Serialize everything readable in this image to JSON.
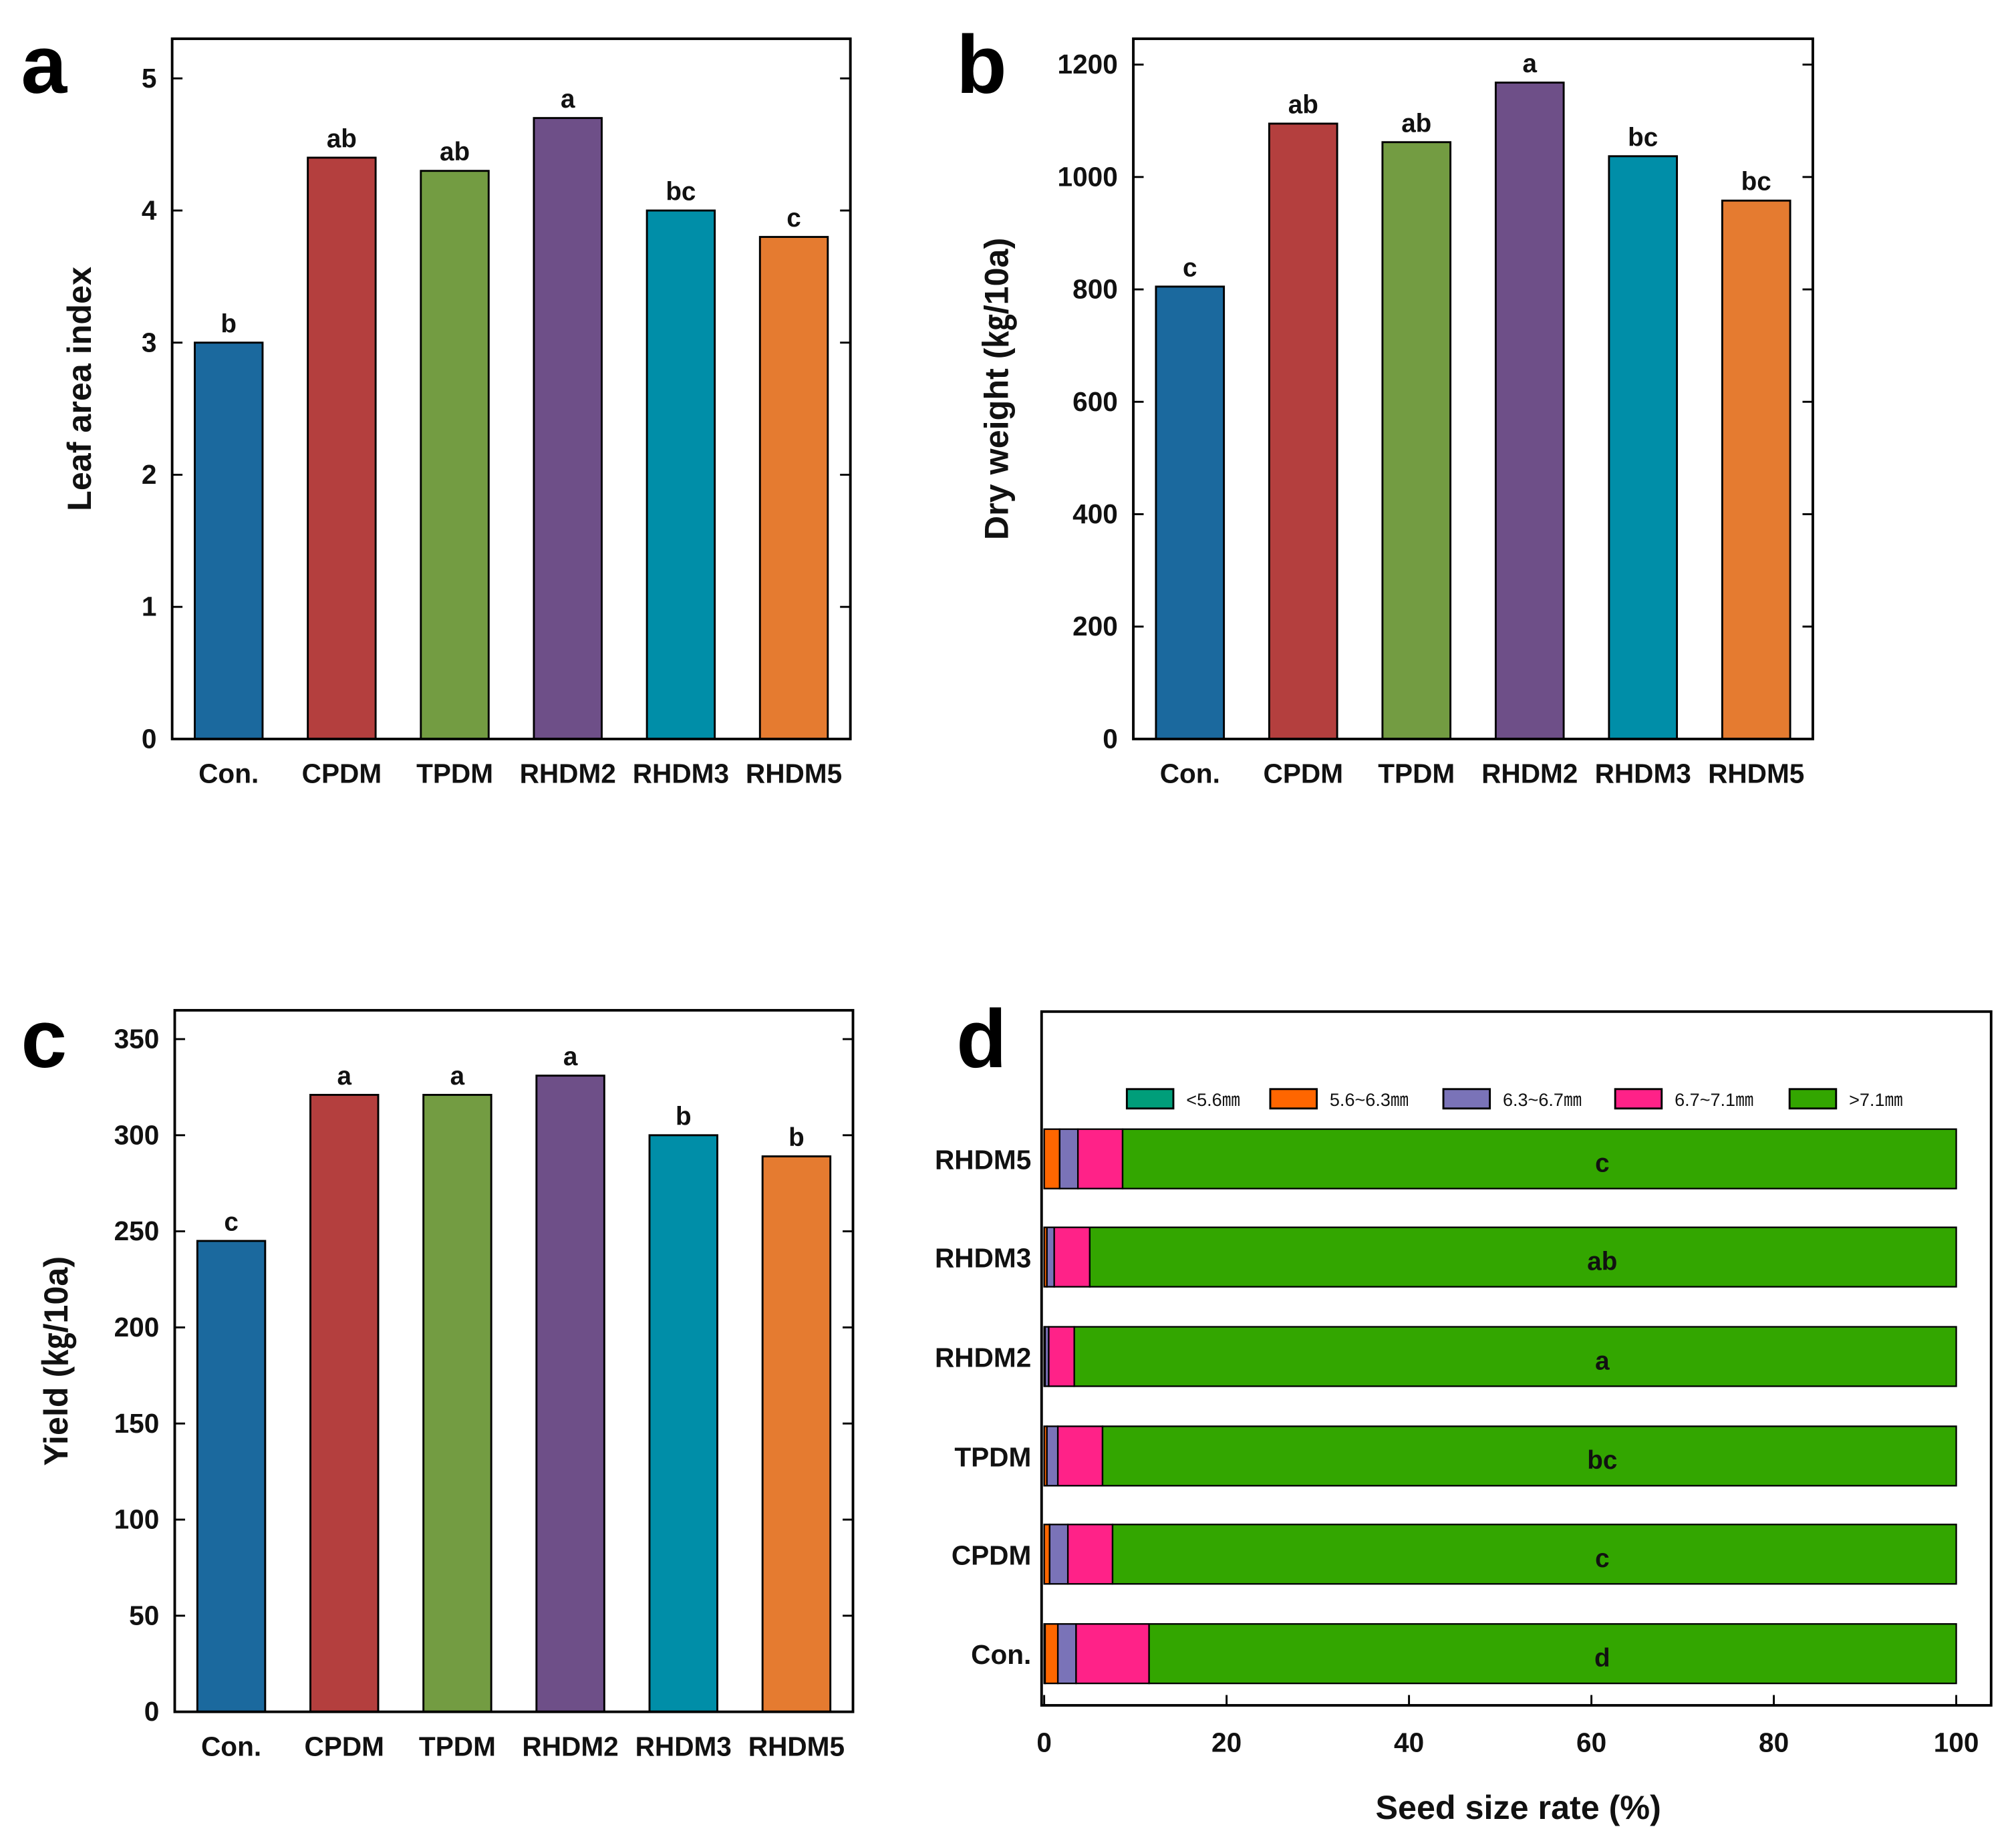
{
  "colors": {
    "Con.": "#1b699e",
    "CPDM": "#b43f3e",
    "TPDM": "#739c42",
    "RHDM2": "#6e4f88",
    "RHDM3": "#008ea8",
    "RHDM5": "#e57b30"
  },
  "chart_data": [
    {
      "panel": "a",
      "type": "bar",
      "categories": [
        "Con.",
        "CPDM",
        "TPDM",
        "RHDM2",
        "RHDM3",
        "RHDM5"
      ],
      "values": [
        3.0,
        4.4,
        4.3,
        4.7,
        4.0,
        3.8
      ],
      "letters": [
        "b",
        "ab",
        "ab",
        "a",
        "bc",
        "c"
      ],
      "ylabel": "Leaf area index",
      "ylim": [
        0,
        5.3
      ],
      "yticks": [
        0,
        1,
        2,
        3,
        4,
        5
      ]
    },
    {
      "panel": "b",
      "type": "bar",
      "categories": [
        "Con.",
        "CPDM",
        "TPDM",
        "RHDM2",
        "RHDM3",
        "RHDM5"
      ],
      "values": [
        805,
        1095,
        1062,
        1168,
        1037,
        958
      ],
      "letters": [
        "c",
        "ab",
        "ab",
        "a",
        "bc",
        "bc"
      ],
      "ylabel": "Dry weight (㎏/10a)",
      "ylim": [
        0,
        1246
      ],
      "yticks": [
        0,
        200,
        400,
        600,
        800,
        1000,
        1200
      ]
    },
    {
      "panel": "c",
      "type": "bar",
      "categories": [
        "Con.",
        "CPDM",
        "TPDM",
        "RHDM2",
        "RHDM3",
        "RHDM5"
      ],
      "values": [
        245,
        321,
        321,
        331,
        300,
        289
      ],
      "letters": [
        "c",
        "a",
        "a",
        "a",
        "b",
        "b"
      ],
      "ylabel": "Yield (㎏/10a)",
      "ylim": [
        0,
        365
      ],
      "yticks": [
        0,
        50,
        100,
        150,
        200,
        250,
        300,
        350
      ]
    },
    {
      "panel": "d",
      "type": "bar",
      "orientation": "horizontal-stacked",
      "categories": [
        "RHDM5",
        "RHDM3",
        "RHDM2",
        "TPDM",
        "CPDM",
        "Con."
      ],
      "series": [
        {
          "name": "<5.6㎜",
          "color": "#009e7a",
          "values": [
            0,
            0,
            0.1,
            0,
            0,
            0.1
          ]
        },
        {
          "name": "5.6~6.3㎜",
          "color": "#ff6600",
          "values": [
            1.7,
            0.3,
            0,
            0.3,
            0.6,
            1.4
          ]
        },
        {
          "name": "6.3~6.7㎜",
          "color": "#7a73b8",
          "values": [
            2.0,
            0.8,
            0.4,
            1.2,
            2.0,
            2.0
          ]
        },
        {
          "name": "6.7~7.1㎜",
          "color": "#ff2288",
          "values": [
            4.9,
            3.9,
            2.8,
            4.9,
            4.9,
            8.0
          ]
        },
        {
          "name": ">7.1㎜",
          "color": "#33a600",
          "values": [
            91.4,
            95.0,
            96.7,
            93.6,
            92.5,
            88.5
          ]
        }
      ],
      "letters": [
        "c",
        "ab",
        "a",
        "bc",
        "c",
        "d"
      ],
      "xlabel": "Seed size rate (%)",
      "xlim": [
        0,
        100
      ],
      "xticks": [
        0,
        20,
        40,
        60,
        80,
        100
      ],
      "legend": "top"
    }
  ]
}
